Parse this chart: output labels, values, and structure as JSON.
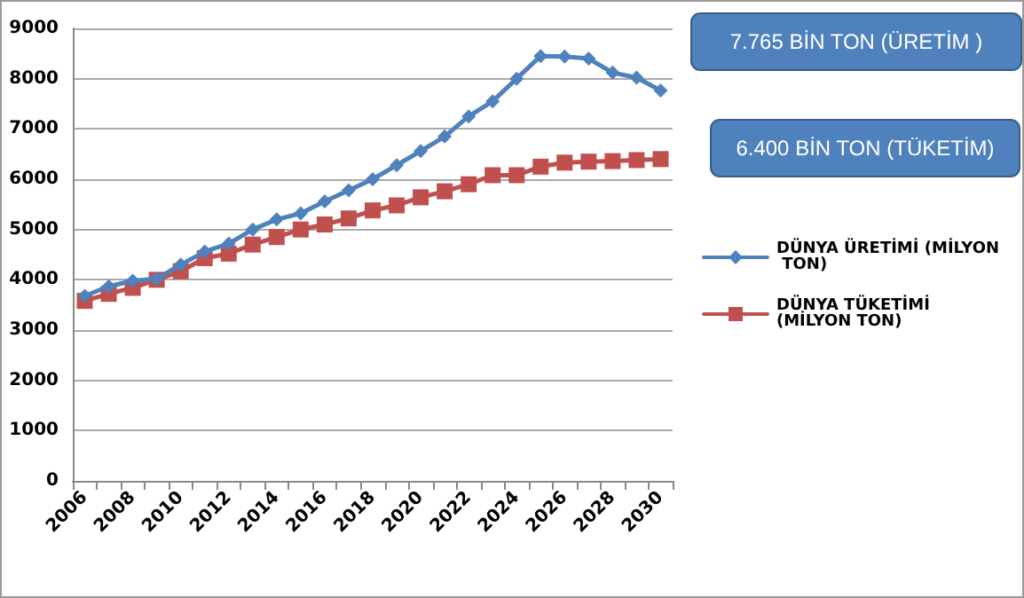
{
  "chart_data": {
    "type": "line",
    "categories": [
      "2006",
      null,
      "2008",
      null,
      "2010",
      null,
      "2012",
      null,
      "2014",
      null,
      "2016",
      null,
      "2018",
      null,
      "2020",
      null,
      "2022",
      null,
      "2024",
      null,
      "2026",
      null,
      "2028",
      null,
      "2030"
    ],
    "series": [
      {
        "name": "DÜNYA ÜRETİMİ (MİLYON TON)",
        "color": "#4f81bd",
        "marker": "diamond",
        "values": [
          3680,
          3870,
          3980,
          4020,
          4300,
          4560,
          4720,
          5000,
          5200,
          5320,
          5560,
          5780,
          6000,
          6280,
          6560,
          6850,
          7250,
          7550,
          8000,
          8450,
          8440,
          8400,
          8120,
          8020,
          7765
        ]
      },
      {
        "name": "DÜNYA TÜKETİMİ (MİLYON TON)",
        "color": "#c0504d",
        "marker": "square",
        "values": [
          3580,
          3720,
          3840,
          4000,
          4170,
          4430,
          4520,
          4700,
          4850,
          5000,
          5100,
          5220,
          5380,
          5480,
          5640,
          5760,
          5900,
          6080,
          6080,
          6250,
          6330,
          6350,
          6360,
          6380,
          6400
        ]
      }
    ],
    "ylim": [
      0,
      9000
    ],
    "yticks": [
      0,
      1000,
      2000,
      3000,
      4000,
      5000,
      6000,
      7000,
      8000,
      9000
    ],
    "grid": "y",
    "legend": "right",
    "annotations": [
      "7.765 BİN TON (ÜRETİM )",
      "6.400 BİN TON (TÜKETİM)"
    ]
  }
}
